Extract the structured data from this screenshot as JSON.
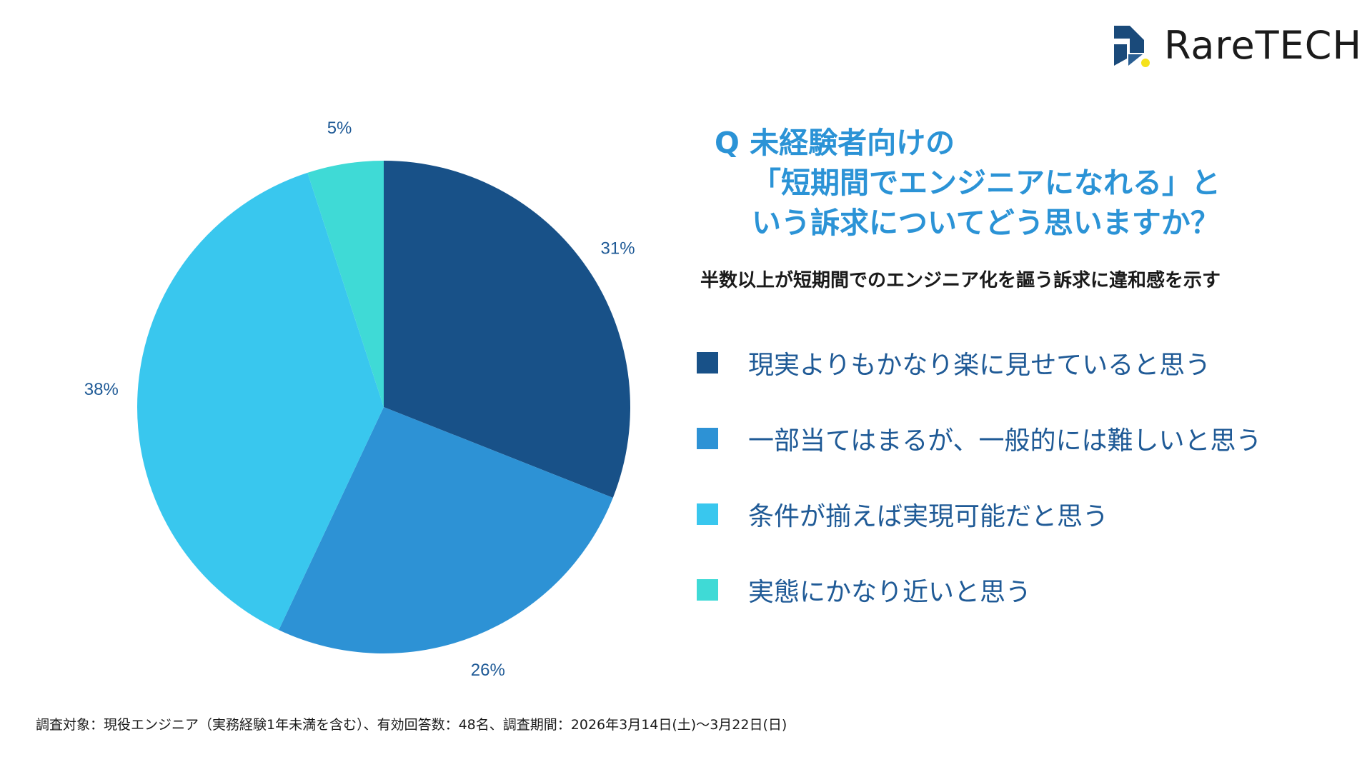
{
  "brand": {
    "name": "RareTECH",
    "colors": {
      "navy": "#1a4a7a",
      "yellow": "#f5e21b"
    }
  },
  "question": {
    "line1": "Q 未経験者向けの",
    "line2": "「短期間でエンジニアになれる」と",
    "line3": "いう訴求についてどう思いますか？"
  },
  "subtitle": "半数以上が短期間でのエンジニア化を謳う訴求に違和感を示す",
  "footnote": "調査対象：現役エンジニア（実務経験1年未満を含む）、有効回答数：48名、調査期間：2026年3月14日(土)〜3月22日(日)",
  "chart_data": {
    "type": "pie",
    "title": "未経験者向けの「短期間でエンジニアになれる」という訴求についてどう思いますか？",
    "start": "12 o'clock, clockwise",
    "slices": [
      {
        "label": "現実よりもかなり楽に見せていると思う",
        "value": 31,
        "display": "31%",
        "color": "#185188"
      },
      {
        "label": "一部当てはまるが、一般的には難しいと思う",
        "value": 26,
        "display": "26%",
        "color": "#2d92d5"
      },
      {
        "label": "条件が揃えば実現可能だと思う",
        "value": 38,
        "display": "38%",
        "color": "#39c7ee"
      },
      {
        "label": "実態にかなり近いと思う",
        "value": 5,
        "display": "5%",
        "color": "#3fdad6"
      }
    ]
  }
}
